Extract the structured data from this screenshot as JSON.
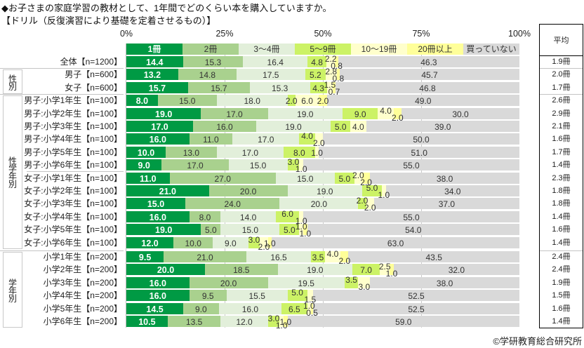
{
  "title": {
    "line1": "◆お子さまの家庭学習の教材として、1年間でどのくらい本を購入していますか。",
    "line2": "【ドリル（反復演習により基礎を定着させるもの）】"
  },
  "copyright": "©学研教育総合研究所",
  "chart_data": {
    "type": "bar",
    "orientation": "horizontal",
    "stacked": true,
    "title": "◆お子さまの家庭学習の教材として、1年間でどのくらい本を購入していますか。",
    "subtitle": "【ドリル（反復演習により基礎を定着させるもの）】",
    "xlabel": "",
    "ylabel": "",
    "xlim": [
      0,
      100
    ],
    "xticks": [
      0,
      25,
      50,
      75,
      100
    ],
    "xtick_labels": [
      "0%",
      "25%",
      "50%",
      "75%",
      "100%"
    ],
    "grid": true,
    "legend_position": "top",
    "categories": [
      "全体【n=1200】",
      "男子【n=600】",
      "女子【n=600】",
      "男子:小学1年生【n=100】",
      "男子:小学2年生【n=100】",
      "男子:小学3年生【n=100】",
      "男子:小学4年生【n=100】",
      "男子:小学5年生【n=100】",
      "男子:小学6年生【n=100】",
      "女子:小学1年生【n=100】",
      "女子:小学2年生【n=100】",
      "女子:小学3年生【n=100】",
      "女子:小学4年生【n=100】",
      "女子:小学5年生【n=100】",
      "女子:小学6年生【n=100】",
      "小学1年生【n=200】",
      "小学2年生【n=200】",
      "小学3年生【n=200】",
      "小学4年生【n=200】",
      "小学5年生【n=200】",
      "小学6年生【n=200】"
    ],
    "groups": [
      {
        "label": "性別",
        "start": 1,
        "end": 2
      },
      {
        "label": "性学年別",
        "start": 3,
        "end": 14
      },
      {
        "label": "学年別",
        "start": 15,
        "end": 20
      }
    ],
    "series": [
      {
        "name": "1冊",
        "color": "#009a44",
        "values": [
          14.4,
          13.2,
          15.7,
          8.0,
          19.0,
          17.0,
          16.0,
          10.0,
          9.0,
          11.0,
          21.0,
          15.0,
          16.0,
          19.0,
          12.0,
          9.5,
          20.0,
          16.0,
          16.0,
          14.5,
          10.5
        ],
        "labels": [
          "14.4",
          "13.2",
          "15.7",
          "8.0",
          "19.0",
          "17.0",
          "16.0",
          "10.0",
          "9.0",
          "11.0",
          "21.0",
          "15.0",
          "16.0",
          "19.0",
          "12.0",
          "9.5",
          "20.0",
          "16.0",
          "16.0",
          "14.5",
          "10.5"
        ]
      },
      {
        "name": "2冊",
        "color": "#a9d18e",
        "values": [
          15.3,
          14.8,
          15.7,
          15.0,
          17.0,
          16.0,
          11.0,
          13.0,
          17.0,
          27.0,
          20.0,
          24.0,
          8.0,
          5.0,
          10.0,
          21.0,
          18.5,
          20.0,
          9.5,
          9.0,
          13.5
        ],
        "labels": [
          "15.3",
          "14.8",
          "15.7",
          "15.0",
          "17.0",
          "16.0",
          "11.0",
          "13.0",
          "17.0",
          "27.0",
          "20.0",
          "24.0",
          "8.0",
          "5.0",
          "10.0",
          "21.0",
          "18.5",
          "20.0",
          "9.5",
          "9.0",
          "13.5"
        ]
      },
      {
        "name": "3～4冊",
        "color": "#e2efda",
        "values": [
          16.4,
          17.5,
          15.3,
          18.0,
          19.0,
          19.0,
          17.0,
          17.0,
          15.0,
          15.0,
          19.0,
          20.0,
          14.0,
          15.0,
          9.0,
          16.5,
          19.0,
          19.5,
          15.5,
          16.0,
          12.0
        ],
        "labels": [
          "16.4",
          "17.5",
          "15.3",
          "18.0",
          "19.0",
          "19.0",
          "17.0",
          "17.0",
          "15.0",
          "15.0",
          "19.0",
          "20.0",
          "14.0",
          "15.0",
          "9.0",
          "16.5",
          "19.0",
          "19.5",
          "15.5",
          "16.0",
          "12.0"
        ]
      },
      {
        "name": "5～9冊",
        "color": "#ccf266",
        "values": [
          4.8,
          5.2,
          4.3,
          2.0,
          9.0,
          5.0,
          4.0,
          8.0,
          3.0,
          5.0,
          5.0,
          2.0,
          6.0,
          5.0,
          3.0,
          3.5,
          7.0,
          3.5,
          5.0,
          6.5,
          3.0
        ],
        "labels": [
          "4.8",
          "5.2",
          "4.3",
          "2.0",
          "9.0",
          "5.0",
          "4.0",
          "8.0",
          "3.0",
          "5.0",
          "5.0",
          "2.0",
          "6.0",
          "5.0",
          "3.0",
          "3.5",
          "7.0",
          "3.5",
          "5.0",
          "6.5",
          "3.0"
        ]
      },
      {
        "name": "10～19冊",
        "color": "#ffffcc",
        "values": [
          2.2,
          2.8,
          1.5,
          6.0,
          4.0,
          4.0,
          2.0,
          1.0,
          1.0,
          2.0,
          1.0,
          2.0,
          1.0,
          1.0,
          2.0,
          4.0,
          2.5,
          3.0,
          1.5,
          1.0,
          1.0
        ],
        "labels": [
          "2.2",
          "2.8",
          "1.5",
          "6.0",
          "4.0",
          "4.0",
          "2.0",
          "1.0",
          "1.0",
          "2.0",
          "1.0",
          "2.0",
          "1.0",
          "1.0",
          "2.0",
          "4.0",
          "2.5",
          "3.0",
          "1.5",
          "1.0",
          "1.0"
        ]
      },
      {
        "name": "20冊以上",
        "color": "#ffff99",
        "values": [
          0.8,
          0.8,
          0.7,
          2.0,
          2.0,
          0,
          0,
          0,
          0,
          2.0,
          0,
          0,
          0,
          1.0,
          1.0,
          2.0,
          1.0,
          0,
          0,
          0.5,
          1.0
        ],
        "labels": [
          "0.8",
          "0.8",
          "0.7",
          "2.0",
          "2.0",
          "",
          "",
          "",
          "",
          "2.0",
          "",
          "",
          "",
          "1.0",
          "1.0",
          "2.0",
          "1.0",
          "",
          "",
          "0.5",
          "1.0"
        ]
      },
      {
        "name": "買っていない",
        "color": "#d9d9d9",
        "values": [
          46.3,
          45.7,
          46.8,
          49.0,
          30.0,
          39.0,
          50.0,
          51.0,
          55.0,
          38.0,
          34.0,
          37.0,
          55.0,
          54.0,
          63.0,
          43.5,
          32.0,
          38.0,
          52.5,
          52.5,
          59.0
        ],
        "labels": [
          "46.3",
          "45.7",
          "46.8",
          "49.0",
          "30.0",
          "39.0",
          "50.0",
          "51.0",
          "55.0",
          "38.0",
          "34.0",
          "37.0",
          "55.0",
          "54.0",
          "63.0",
          "43.5",
          "32.0",
          "38.0",
          "52.5",
          "52.5",
          "59.0"
        ]
      }
    ],
    "average_header": "平均",
    "averages": [
      "1.9冊",
      "2.0冊",
      "1.7冊",
      "2.6冊",
      "2.9冊",
      "2.1冊",
      "1.6冊",
      "1.7冊",
      "1.4冊",
      "2.3冊",
      "1.8冊",
      "1.8冊",
      "1.4冊",
      "1.6冊",
      "1.4冊",
      "2.4冊",
      "2.4冊",
      "1.9冊",
      "1.5冊",
      "1.6冊",
      "1.4冊"
    ]
  }
}
